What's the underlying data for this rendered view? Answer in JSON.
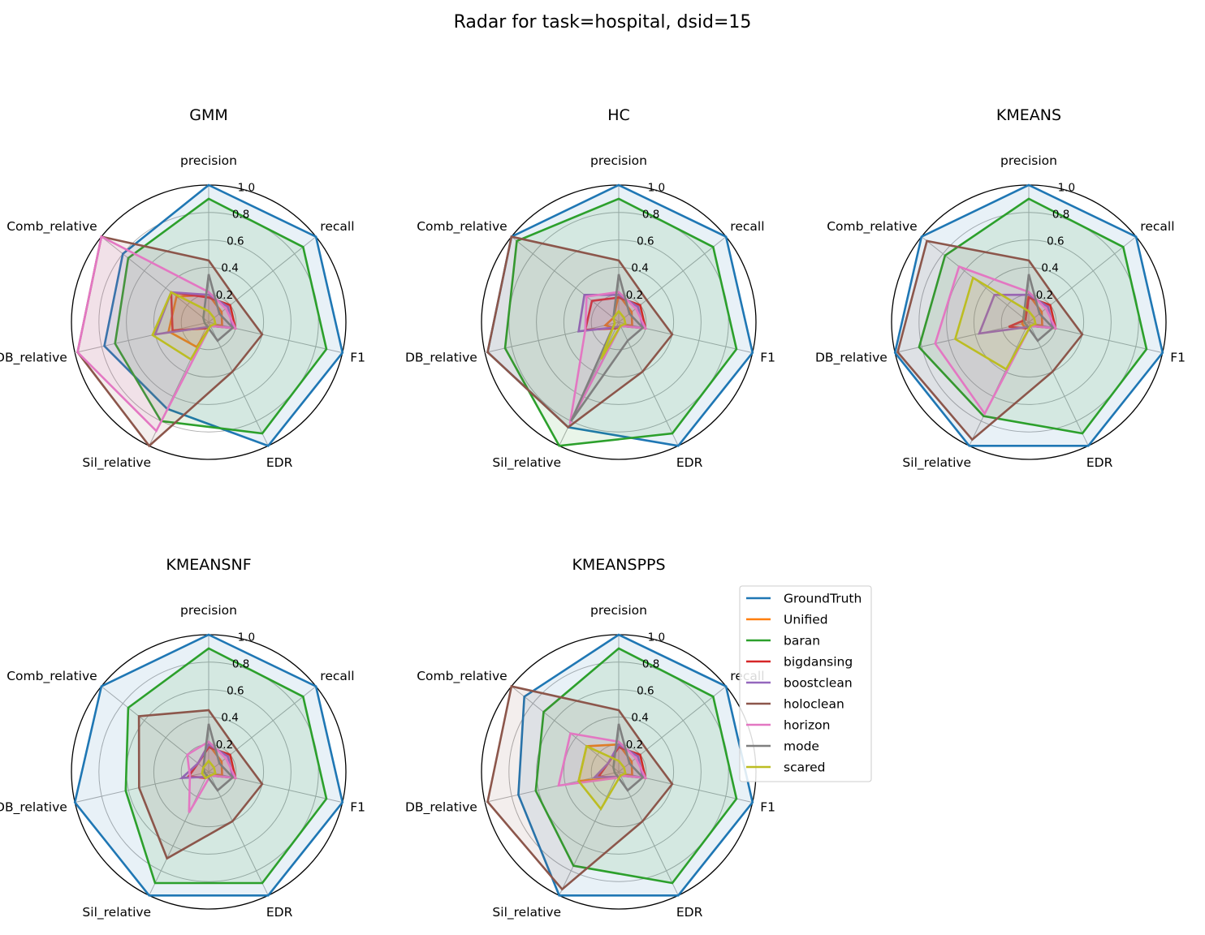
{
  "suptitle": "Radar for task=hospital, dsid=15",
  "chart_data": {
    "type": "radar",
    "axes": [
      "precision",
      "recall",
      "F1",
      "EDR",
      "Sil_relative",
      "DB_relative",
      "Comb_relative"
    ],
    "rlim": [
      0,
      1.0
    ],
    "rticks": [
      0.2,
      0.4,
      0.6,
      0.8,
      1.0
    ],
    "rtick_labels": [
      "0.2",
      "0.4",
      "0.6",
      "0.8",
      "1.0"
    ],
    "grid": true,
    "legend_placement": "right of KMEANSPPS panel",
    "series": [
      {
        "name": "GroundTruth",
        "color": "#1f77b4"
      },
      {
        "name": "Unified",
        "color": "#ff7f0e"
      },
      {
        "name": "baran",
        "color": "#2ca02c"
      },
      {
        "name": "bigdansing",
        "color": "#d62728"
      },
      {
        "name": "boostclean",
        "color": "#9467bd"
      },
      {
        "name": "holoclean",
        "color": "#8c564b"
      },
      {
        "name": "horizon",
        "color": "#e377c2"
      },
      {
        "name": "mode",
        "color": "#7f7f7f"
      },
      {
        "name": "scared",
        "color": "#bcbd22"
      }
    ],
    "panels": [
      {
        "title": "GMM",
        "values": {
          "GroundTruth": [
            1.0,
            1.0,
            1.0,
            1.0,
            0.7,
            0.78,
            0.8
          ],
          "Unified": [
            0.2,
            0.12,
            0.1,
            0.03,
            0.2,
            0.3,
            0.3
          ],
          "baran": [
            0.9,
            0.88,
            0.88,
            0.9,
            0.8,
            0.7,
            0.75
          ],
          "bigdansing": [
            0.18,
            0.2,
            0.2,
            0.03,
            0.05,
            0.27,
            0.35
          ],
          "boostclean": [
            0.2,
            0.18,
            0.18,
            0.03,
            0.04,
            0.4,
            0.35
          ],
          "holoclean": [
            0.45,
            0.26,
            0.4,
            0.4,
            1.0,
            0.98,
            1.0
          ],
          "horizon": [
            0.22,
            0.16,
            0.2,
            0.03,
            0.88,
            0.98,
            1.0
          ],
          "mode": [
            0.35,
            0.1,
            0.18,
            0.15,
            0.03,
            0.03,
            0.05
          ],
          "scared": [
            0.08,
            0.05,
            0.05,
            0.03,
            0.3,
            0.42,
            0.35
          ]
        }
      },
      {
        "title": "HC",
        "values": {
          "GroundTruth": [
            1.0,
            1.0,
            1.0,
            1.0,
            0.85,
            0.98,
            1.0
          ],
          "Unified": [
            0.2,
            0.12,
            0.1,
            0.03,
            0.05,
            0.1,
            0.05
          ],
          "baran": [
            0.9,
            0.88,
            0.88,
            0.9,
            1.0,
            0.85,
            0.95
          ],
          "bigdansing": [
            0.18,
            0.2,
            0.2,
            0.03,
            0.05,
            0.25,
            0.25
          ],
          "boostclean": [
            0.2,
            0.18,
            0.18,
            0.03,
            0.04,
            0.3,
            0.32
          ],
          "holoclean": [
            0.45,
            0.26,
            0.4,
            0.4,
            0.85,
            0.98,
            1.0
          ],
          "horizon": [
            0.22,
            0.16,
            0.2,
            0.03,
            0.82,
            0.25,
            0.3
          ],
          "mode": [
            0.35,
            0.1,
            0.18,
            0.15,
            0.8,
            0.03,
            0.05
          ],
          "scared": [
            0.08,
            0.05,
            0.05,
            0.03,
            0.3,
            0.03,
            0.05
          ]
        }
      },
      {
        "title": "KMEANS",
        "values": {
          "GroundTruth": [
            1.0,
            1.0,
            1.0,
            1.0,
            1.0,
            1.0,
            1.0
          ],
          "Unified": [
            0.2,
            0.12,
            0.1,
            0.03,
            0.05,
            0.05,
            0.05
          ],
          "baran": [
            0.9,
            0.88,
            0.88,
            0.9,
            0.76,
            0.82,
            0.78
          ],
          "bigdansing": [
            0.18,
            0.2,
            0.2,
            0.03,
            0.05,
            0.15,
            0.03
          ],
          "boostclean": [
            0.2,
            0.18,
            0.18,
            0.03,
            0.04,
            0.37,
            0.32
          ],
          "horizon": [
            0.22,
            0.16,
            0.2,
            0.03,
            0.74,
            0.7,
            0.65
          ],
          "holoclean": [
            0.45,
            0.26,
            0.4,
            0.4,
            0.95,
            0.98,
            0.95
          ],
          "mode": [
            0.35,
            0.1,
            0.18,
            0.15,
            0.03,
            0.03,
            0.05
          ],
          "scared": [
            0.08,
            0.05,
            0.05,
            0.03,
            0.38,
            0.55,
            0.52
          ]
        }
      },
      {
        "title": "KMEANSNF",
        "values": {
          "GroundTruth": [
            1.0,
            1.0,
            1.0,
            1.0,
            1.0,
            1.0,
            1.0
          ],
          "Unified": [
            0.2,
            0.12,
            0.1,
            0.03,
            0.05,
            0.15,
            0.1
          ],
          "baran": [
            0.9,
            0.88,
            0.88,
            0.9,
            0.9,
            0.62,
            0.75
          ],
          "bigdansing": [
            0.18,
            0.2,
            0.2,
            0.03,
            0.05,
            0.15,
            0.1
          ],
          "boostclean": [
            0.2,
            0.18,
            0.18,
            0.03,
            0.04,
            0.2,
            0.1
          ],
          "holoclean": [
            0.45,
            0.26,
            0.4,
            0.4,
            0.7,
            0.52,
            0.65
          ],
          "horizon": [
            0.22,
            0.16,
            0.2,
            0.03,
            0.33,
            0.14,
            0.2
          ],
          "mode": [
            0.35,
            0.1,
            0.18,
            0.15,
            0.03,
            0.03,
            0.05
          ],
          "scared": [
            0.08,
            0.05,
            0.05,
            0.03,
            0.05,
            0.05,
            0.05
          ]
        }
      },
      {
        "title": "KMEANSPPS",
        "values": {
          "GroundTruth": [
            1.0,
            1.0,
            1.0,
            1.0,
            1.0,
            0.75,
            0.88
          ],
          "Unified": [
            0.2,
            0.12,
            0.1,
            0.03,
            0.05,
            0.3,
            0.3
          ],
          "baran": [
            0.9,
            0.88,
            0.88,
            0.9,
            0.76,
            0.62,
            0.7
          ],
          "bigdansing": [
            0.18,
            0.2,
            0.2,
            0.03,
            0.05,
            0.15,
            0.1
          ],
          "boostclean": [
            0.2,
            0.18,
            0.18,
            0.03,
            0.04,
            0.18,
            0.1
          ],
          "holoclean": [
            0.45,
            0.26,
            0.4,
            0.4,
            0.95,
            0.98,
            1.0
          ],
          "horizon": [
            0.22,
            0.16,
            0.2,
            0.03,
            0.05,
            0.45,
            0.45
          ],
          "mode": [
            0.35,
            0.1,
            0.18,
            0.15,
            0.03,
            0.03,
            0.05
          ],
          "scared": [
            0.08,
            0.05,
            0.05,
            0.03,
            0.3,
            0.3,
            0.3
          ]
        }
      }
    ]
  }
}
